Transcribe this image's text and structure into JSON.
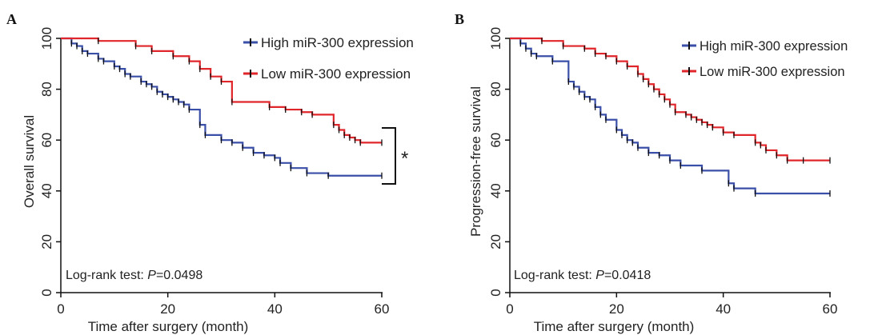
{
  "chart_data": [
    {
      "type": "line",
      "panel_label": "A",
      "xlabel": "Time after surgery (month)",
      "ylabel": "Overall survival",
      "xlim": [
        0,
        60
      ],
      "ylim": [
        0,
        100
      ],
      "xticks": [
        0,
        20,
        40,
        60
      ],
      "yticks": [
        0,
        20,
        40,
        60,
        80,
        100
      ],
      "grid": false,
      "legend_position": "top-right",
      "annotation": "Log-rank test: P=0.0498",
      "annotation_prefix": "Log-rank test: ",
      "annotation_p": "P",
      "annotation_value": "=0.0498",
      "significance_marker": "*",
      "series": [
        {
          "name": "High miR-300 expression",
          "color": "#3a4fa8",
          "x": [
            0,
            2,
            3,
            4,
            5,
            7,
            8,
            10,
            11,
            12,
            13,
            15,
            16,
            17,
            18,
            19,
            20,
            21,
            22,
            23,
            24,
            26,
            27,
            30,
            32,
            34,
            36,
            38,
            40,
            41,
            43,
            46,
            50,
            60
          ],
          "y": [
            100,
            98,
            97,
            95,
            94,
            92,
            91,
            89,
            88,
            86,
            85,
            83,
            82,
            81,
            79,
            78,
            77,
            76,
            75,
            74,
            72,
            66,
            62,
            60,
            59,
            57,
            55,
            54,
            53,
            51,
            49,
            47,
            46,
            46
          ]
        },
        {
          "name": "Low miR-300 expression",
          "color": "#e0262a",
          "x": [
            0,
            7,
            14,
            17,
            21,
            24,
            26,
            28,
            30,
            32,
            39,
            42,
            45,
            47,
            51,
            52,
            53,
            54,
            55,
            56,
            60
          ],
          "y": [
            100,
            99,
            97,
            95,
            93,
            91,
            88,
            85,
            83,
            75,
            73,
            72,
            71,
            70,
            66,
            64,
            62,
            61,
            60,
            59,
            59
          ]
        }
      ]
    },
    {
      "type": "line",
      "panel_label": "B",
      "xlabel": "Time after surgery (month)",
      "ylabel": "Progression-free survival",
      "xlim": [
        0,
        60
      ],
      "ylim": [
        0,
        100
      ],
      "xticks": [
        0,
        20,
        40,
        60
      ],
      "yticks": [
        0,
        20,
        40,
        60,
        80,
        100
      ],
      "grid": false,
      "legend_position": "top-right",
      "annotation": "Log-rank test: P=0.0418",
      "annotation_prefix": "Log-rank test: ",
      "annotation_p": "P",
      "annotation_value": "=0.0418",
      "series": [
        {
          "name": "High miR-300 expression",
          "color": "#3a4fa8",
          "x": [
            0,
            2,
            3,
            4,
            5,
            8,
            11,
            12,
            13,
            14,
            15,
            16,
            17,
            18,
            20,
            21,
            22,
            23,
            24,
            26,
            28,
            30,
            32,
            36,
            41,
            42,
            46,
            60
          ],
          "y": [
            100,
            98,
            96,
            94,
            93,
            91,
            83,
            81,
            79,
            77,
            76,
            73,
            70,
            68,
            64,
            62,
            60,
            59,
            57,
            55,
            54,
            52,
            50,
            48,
            43,
            41,
            39,
            39
          ]
        },
        {
          "name": "Low miR-300 expression",
          "color": "#e0262a",
          "x": [
            0,
            6,
            10,
            14,
            16,
            18,
            20,
            22,
            24,
            25,
            26,
            27,
            28,
            29,
            30,
            31,
            33,
            34,
            35,
            36,
            37,
            38,
            40,
            42,
            46,
            47,
            48,
            50,
            52,
            55,
            60
          ],
          "y": [
            100,
            99,
            97,
            96,
            94,
            93,
            91,
            89,
            86,
            84,
            82,
            80,
            78,
            76,
            74,
            71,
            70,
            69,
            68,
            67,
            66,
            65,
            63,
            62,
            59,
            58,
            56,
            54,
            52,
            52,
            52
          ]
        }
      ]
    }
  ]
}
